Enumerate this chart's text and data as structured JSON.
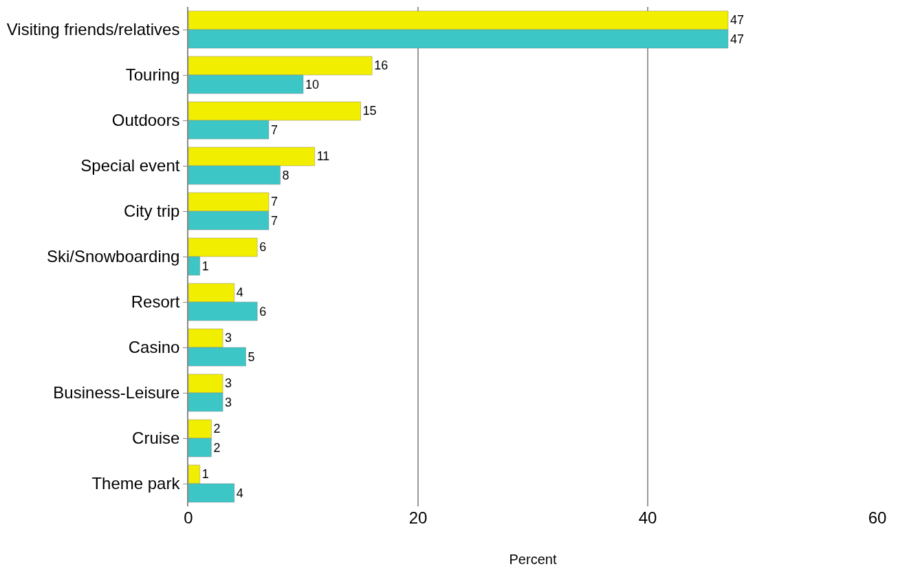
{
  "chart_data": {
    "type": "bar",
    "orientation": "horizontal",
    "xlabel": "Percent",
    "categories": [
      "Visiting friends/relatives",
      "Touring",
      "Outdoors",
      "Special event",
      "City trip",
      "Ski/Snowboarding",
      "Resort",
      "Casino",
      "Business-Leisure",
      "Cruise",
      "Theme park"
    ],
    "series": [
      {
        "color": "#f2ee00",
        "values": [
          47,
          16,
          15,
          11,
          7,
          6,
          4,
          3,
          3,
          2,
          1
        ]
      },
      {
        "color": "#3cc6c6",
        "values": [
          47,
          10,
          7,
          8,
          7,
          1,
          6,
          5,
          3,
          2,
          4
        ]
      }
    ],
    "xlim": [
      0,
      60
    ],
    "xticks": [
      0,
      20,
      40,
      60
    ],
    "grid": "x",
    "data_labels": true
  }
}
